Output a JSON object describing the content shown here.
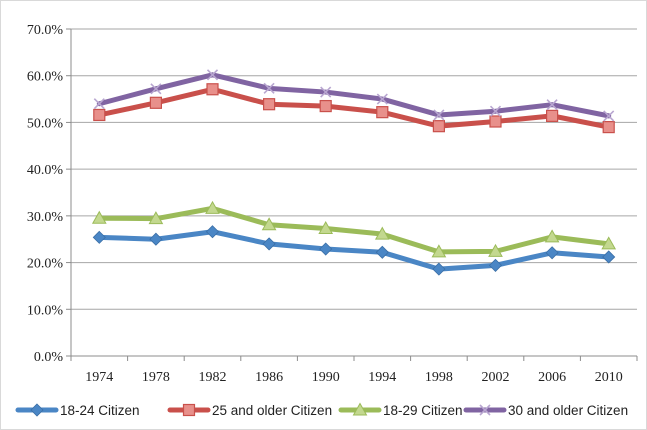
{
  "chart_data": {
    "type": "line",
    "title": "",
    "xlabel": "",
    "ylabel": "",
    "categories": [
      "1974",
      "1978",
      "1982",
      "1986",
      "1990",
      "1994",
      "1998",
      "2002",
      "2006",
      "2010"
    ],
    "ylim": [
      0,
      70
    ],
    "ytick_values": [
      0,
      10,
      20,
      30,
      40,
      50,
      60,
      70
    ],
    "ytick_labels": [
      "0.0%",
      "10.0%",
      "20.0%",
      "30.0%",
      "40.0%",
      "50.0%",
      "60.0%",
      "70.0%"
    ],
    "grid": true,
    "legend_position": "bottom",
    "series": [
      {
        "name": "18-24 Citizen",
        "color": "#4a86c5",
        "marker": "diamond",
        "values": [
          25.4,
          25.0,
          26.6,
          24.0,
          22.9,
          22.2,
          18.6,
          19.4,
          22.1,
          21.2
        ]
      },
      {
        "name": "25 and older Citizen",
        "color": "#c9504b",
        "marker": "square",
        "values": [
          51.6,
          54.2,
          57.1,
          53.9,
          53.5,
          52.2,
          49.2,
          50.2,
          51.4,
          49.0
        ]
      },
      {
        "name": "18-29 Citizen",
        "color": "#9bbb59",
        "marker": "triangle",
        "values": [
          29.5,
          29.4,
          31.6,
          28.1,
          27.3,
          26.1,
          22.3,
          22.4,
          25.5,
          24.0
        ]
      },
      {
        "name": "30 and older Citizen",
        "color": "#8064a2",
        "marker": "x",
        "values": [
          54.0,
          57.2,
          60.2,
          57.3,
          56.5,
          55.0,
          51.6,
          52.4,
          53.8,
          51.4
        ]
      }
    ]
  }
}
